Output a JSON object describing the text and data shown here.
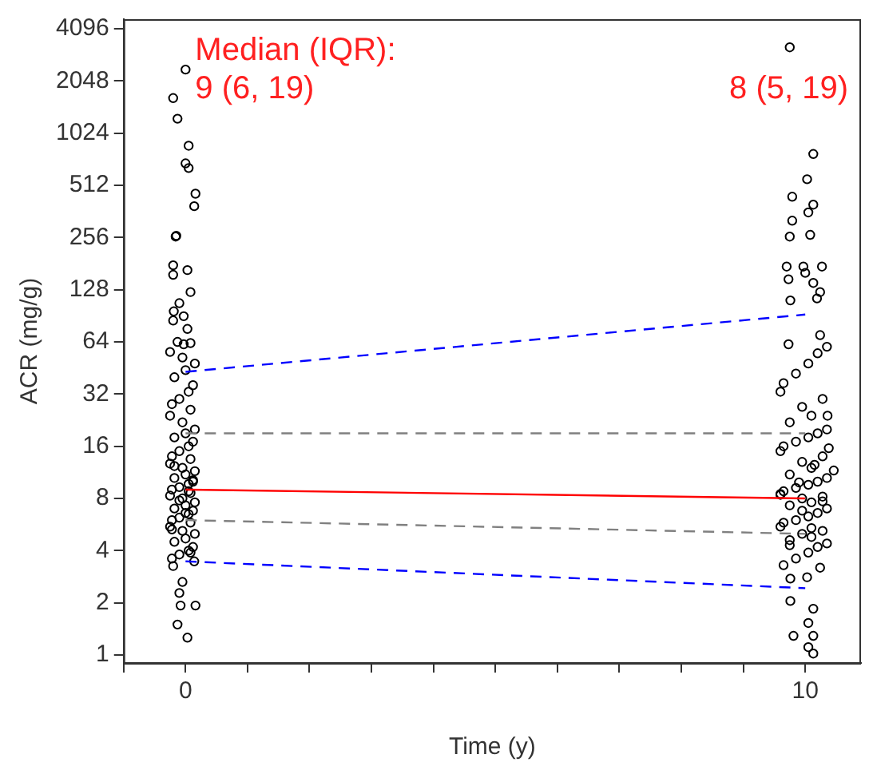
{
  "chart_data": {
    "type": "scatter",
    "xlabel": "Time (y)",
    "ylabel": "ACR (mg/g)",
    "annotations": [
      "Median (IQR):",
      "9 (6, 19)",
      "8 (5, 19)"
    ],
    "xlim": [
      -1,
      10.9
    ],
    "xticks": [
      {
        "value": -1,
        "label": null
      },
      0,
      {
        "value": 1,
        "label": null
      },
      {
        "value": 2,
        "label": null
      },
      {
        "value": 3,
        "label": null
      },
      {
        "value": 4,
        "label": null
      },
      {
        "value": 5,
        "label": null
      },
      {
        "value": 6,
        "label": null
      },
      {
        "value": 7,
        "label": null
      },
      {
        "value": 8,
        "label": null
      },
      {
        "value": 9,
        "label": null
      },
      10
    ],
    "ylim": [
      0.9,
      4650
    ],
    "yticks": [
      1,
      2,
      4,
      8,
      16,
      32,
      64,
      128,
      256,
      512,
      1024,
      2048,
      4096
    ],
    "log": "y",
    "grid": false,
    "legend": false,
    "series": [
      {
        "marker": "circle",
        "color": "#000000",
        "x": [
          0,
          -0.2,
          -0.13,
          0.05,
          0,
          0.05,
          0.16,
          0.14,
          -0.16,
          -0.15,
          -0.2,
          -0.2,
          0.03,
          0.08,
          -0.1,
          -0.19,
          -0.03,
          -0.2,
          0.03,
          -0.13,
          -0.03,
          0.08,
          -0.13,
          0.03,
          -0.08,
          0.16,
          -0.1,
          -0.05,
          -0.2,
          0.14,
          -0.22,
          -0.1,
          0.05,
          0.12,
          -0.18,
          0,
          0.15,
          -0.05,
          -0.25,
          0.08,
          -0.22,
          -0.1,
          0.05,
          0.12,
          -0.18,
          0,
          0.15,
          -0.05,
          -0.25,
          0.08,
          -0.22,
          -0.1,
          0.05,
          0.12,
          -0.18,
          0,
          0.15,
          -0.05,
          -0.25,
          0.08,
          -0.22,
          -0.1,
          0.05,
          0.12,
          -0.18,
          0,
          0.15,
          -0.05,
          -0.25,
          0.08,
          -0.22,
          -0.1,
          0.05,
          0.12,
          -0.18,
          0,
          0.15,
          -0.05,
          -0.25,
          0.08,
          -0.22,
          -0.1,
          0.05,
          0.12,
          -0.18,
          0
        ],
        "values": [
          2380,
          1630,
          1240,
          866,
          685,
          644,
          458,
          388,
          259,
          262,
          177,
          156,
          166,
          124,
          107,
          96,
          90,
          85,
          76,
          64,
          62,
          63,
          1.5,
          1.26,
          1.93,
          1.93,
          2.28,
          2.64,
          3.26,
          3.47,
          3.6,
          3.8,
          4,
          4.2,
          4.5,
          4.7,
          5,
          5.2,
          5.5,
          5.8,
          6,
          6.2,
          6.5,
          6.8,
          7,
          7.3,
          7.6,
          8,
          8.3,
          8.6,
          9,
          9.3,
          9.7,
          10,
          10.5,
          11,
          11.5,
          12,
          12.7,
          13.5,
          14,
          15,
          16,
          17,
          18,
          19,
          20,
          22,
          24,
          26,
          28,
          30,
          33,
          36,
          40,
          44,
          48,
          52,
          56,
          3.9,
          5.3,
          7.8,
          8.8,
          10.2,
          12.3,
          6.6
        ]
      },
      {
        "marker": "circle",
        "color": "#000000",
        "x": [
          9.75,
          10.13,
          10.03,
          9.79,
          10.13,
          9.79,
          10.05,
          9.75,
          10.08,
          9.7,
          9.97,
          10.27,
          9.73,
          10,
          10.13,
          10.24,
          9.76,
          10.19,
          10.24,
          9.73,
          10.36,
          10.46,
          10.38,
          10.13,
          10.05,
          9.81,
          10.13,
          10.05,
          10.13,
          9.76,
          9.76,
          10.03,
          10.24,
          9.65,
          9.85,
          10.05,
          10.2,
          10.35,
          9.75,
          10.1,
          9.95,
          10.28,
          9.6,
          9.65,
          9.85,
          10.05,
          10.2,
          10.35,
          9.75,
          10.1,
          9.95,
          10.28,
          9.6,
          9.65,
          9.85,
          10.05,
          10.2,
          10.35,
          9.75,
          10.1,
          9.95,
          10.28,
          9.6,
          9.65,
          9.85,
          10.05,
          10.2,
          10.35,
          9.75,
          10.1,
          9.95,
          10.28,
          9.6,
          9.65,
          9.85,
          10.05,
          10.2,
          10.35,
          9.75,
          10.1,
          9.95,
          10.28,
          9.6,
          9.9,
          10.15
        ],
        "values": [
          3200,
          776,
          555,
          440,
          396,
          320,
          357,
          259,
          265,
          174,
          174,
          174,
          147,
          160,
          140,
          124,
          111,
          114,
          70,
          62,
          24,
          11.6,
          15.6,
          1.02,
          1.11,
          1.29,
          1.29,
          1.53,
          1.85,
          2.05,
          2.76,
          2.81,
          3.19,
          3.3,
          3.6,
          3.9,
          4.2,
          4.4,
          4.6,
          4.8,
          5,
          5.2,
          5.5,
          5.8,
          6,
          6.3,
          6.6,
          7,
          7.3,
          7.6,
          8,
          8.2,
          8.5,
          8.8,
          9.2,
          9.6,
          10,
          10.5,
          11,
          12,
          13,
          14,
          15,
          16,
          17,
          18,
          19,
          20,
          22,
          24,
          27,
          30,
          33,
          37,
          42,
          48,
          55,
          60,
          4.3,
          5.4,
          6.8,
          7.7,
          8.4,
          9.9,
          12.5
        ]
      },
      {
        "type": "line",
        "marker": "none",
        "color": "#ff0000",
        "line_style": "solid",
        "x": [
          0,
          10
        ],
        "values": [
          9,
          8
        ]
      },
      {
        "type": "line",
        "marker": "none",
        "color": "#808080",
        "line_style": "dashed",
        "x": [
          0,
          10
        ],
        "values": [
          19,
          19
        ]
      },
      {
        "type": "line",
        "marker": "none",
        "color": "#808080",
        "line_style": "dashed",
        "x": [
          0,
          10
        ],
        "values": [
          6,
          5
        ]
      },
      {
        "type": "line",
        "marker": "none",
        "color": "#0000ff",
        "line_style": "dashed",
        "x": [
          0,
          10
        ],
        "values": [
          43,
          92
        ]
      },
      {
        "type": "line",
        "marker": "none",
        "color": "#0000ff",
        "line_style": "dashed",
        "x": [
          0,
          10
        ],
        "values": [
          3.47,
          2.43
        ]
      }
    ]
  }
}
